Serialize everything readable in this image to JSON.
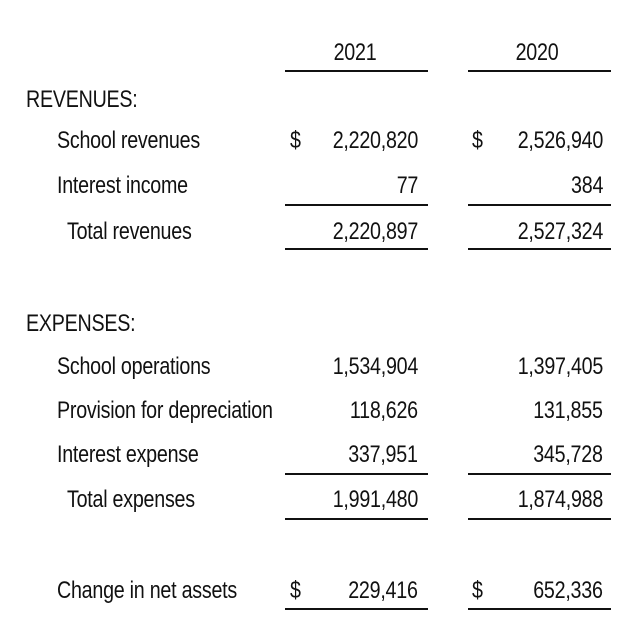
{
  "header": {
    "year1": "2021",
    "year2": "2020"
  },
  "revenues": {
    "heading": "REVENUES:",
    "school_revenues": {
      "label": "School revenues",
      "currency1": "$",
      "v2021": "2,220,820",
      "currency2": "$",
      "v2020": "2,526,940"
    },
    "interest_income": {
      "label": "Interest income",
      "v2021": "77",
      "v2020": "384"
    },
    "total": {
      "label": "Total revenues",
      "v2021": "2,220,897",
      "v2020": "2,527,324"
    }
  },
  "expenses": {
    "heading": "EXPENSES:",
    "school_operations": {
      "label": "School operations",
      "v2021": "1,534,904",
      "v2020": "1,397,405"
    },
    "depreciation": {
      "label": "Provision for depreciation",
      "v2021": "118,626",
      "v2020": "131,855"
    },
    "interest_expense": {
      "label": "Interest expense",
      "v2021": "337,951",
      "v2020": "345,728"
    },
    "total": {
      "label": "Total expenses",
      "v2021": "1,991,480",
      "v2020": "1,874,988"
    }
  },
  "net": {
    "label": "Change in net assets",
    "currency1": "$",
    "v2021": "229,416",
    "currency2": "$",
    "v2020": "652,336"
  }
}
